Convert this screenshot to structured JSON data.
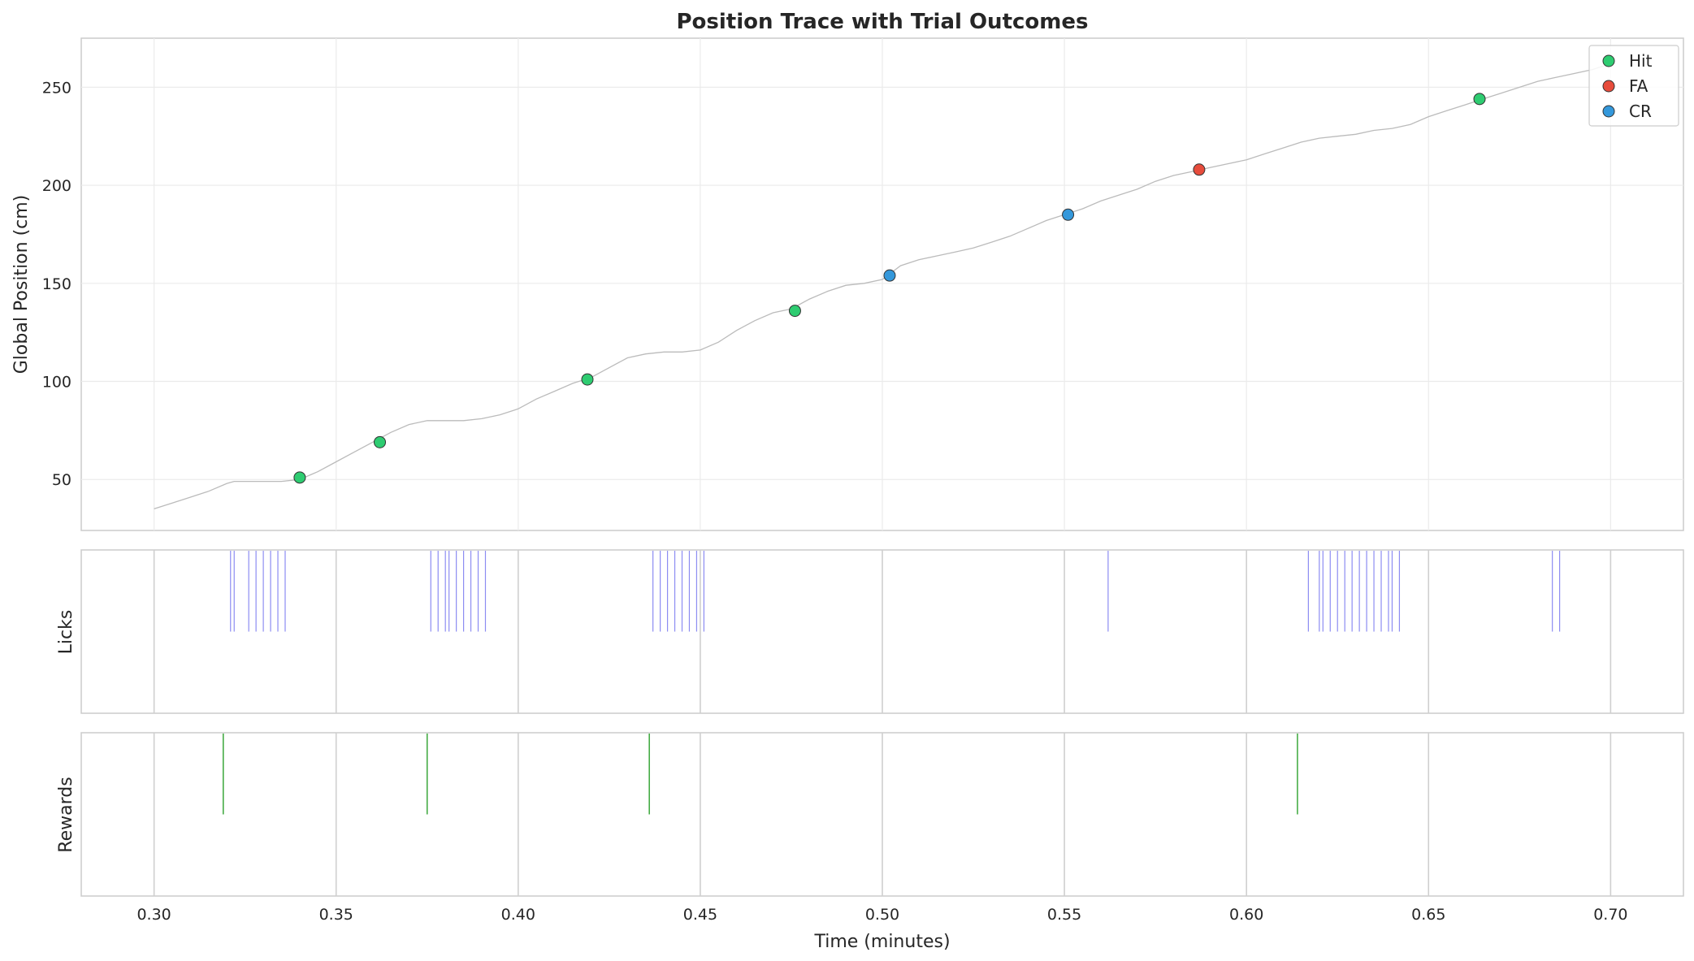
{
  "chart_data": {
    "type": "scatter",
    "title": "Position Trace with Trial Outcomes",
    "xlabel": "Time (minutes)",
    "xlim": [
      0.28,
      0.72
    ],
    "xticks": [
      0.3,
      0.35,
      0.4,
      0.45,
      0.5,
      0.55,
      0.6,
      0.65,
      0.7
    ],
    "xtick_labels": [
      "0.30",
      "0.35",
      "0.40",
      "0.45",
      "0.50",
      "0.55",
      "0.60",
      "0.65",
      "0.70"
    ],
    "grid": true,
    "panels": [
      {
        "id": "position",
        "ylabel": "Global Position (cm)",
        "ylim": [
          24,
          275
        ],
        "yticks": [
          50,
          100,
          150,
          200,
          250
        ],
        "ytick_labels": [
          "50",
          "100",
          "150",
          "200",
          "250"
        ],
        "trace": {
          "x": [
            0.3,
            0.305,
            0.31,
            0.315,
            0.32,
            0.322,
            0.33,
            0.335,
            0.34,
            0.345,
            0.35,
            0.355,
            0.36,
            0.365,
            0.37,
            0.375,
            0.378,
            0.385,
            0.39,
            0.395,
            0.4,
            0.405,
            0.41,
            0.415,
            0.42,
            0.425,
            0.43,
            0.435,
            0.44,
            0.445,
            0.45,
            0.455,
            0.46,
            0.465,
            0.47,
            0.475,
            0.48,
            0.485,
            0.49,
            0.495,
            0.5,
            0.505,
            0.51,
            0.515,
            0.52,
            0.525,
            0.53,
            0.535,
            0.54,
            0.545,
            0.55,
            0.555,
            0.56,
            0.565,
            0.57,
            0.575,
            0.58,
            0.585,
            0.59,
            0.595,
            0.6,
            0.605,
            0.61,
            0.615,
            0.62,
            0.625,
            0.63,
            0.635,
            0.64,
            0.645,
            0.65,
            0.655,
            0.66,
            0.665,
            0.67,
            0.675,
            0.68,
            0.685,
            0.69,
            0.695,
            0.7
          ],
          "y": [
            35,
            38,
            41,
            44,
            48,
            49,
            49,
            49,
            50,
            54,
            59,
            64,
            69,
            74,
            78,
            80,
            80,
            80,
            81,
            83,
            86,
            91,
            95,
            99,
            102,
            107,
            112,
            114,
            115,
            115,
            116,
            120,
            126,
            131,
            135,
            137,
            142,
            146,
            149,
            150,
            152,
            159,
            162,
            164,
            166,
            168,
            171,
            174,
            178,
            182,
            185,
            188,
            192,
            195,
            198,
            202,
            205,
            207,
            209,
            211,
            213,
            216,
            219,
            222,
            224,
            225,
            226,
            228,
            229,
            231,
            235,
            238,
            241,
            244,
            247,
            250,
            253,
            255,
            257,
            259,
            262
          ]
        },
        "series": [
          {
            "name": "Hit",
            "color": "#2ecc71",
            "x": [
              0.34,
              0.362,
              0.419,
              0.476,
              0.664
            ],
            "y": [
              51,
              69,
              101,
              136,
              244
            ]
          },
          {
            "name": "FA",
            "color": "#e74c3c",
            "x": [
              0.587
            ],
            "y": [
              208
            ]
          },
          {
            "name": "CR",
            "color": "#3498db",
            "x": [
              0.502,
              0.551
            ],
            "y": [
              154,
              185
            ]
          }
        ],
        "legend": "top-right"
      },
      {
        "id": "licks",
        "ylabel": "Licks",
        "color": "#6666ee",
        "events": [
          0.321,
          0.322,
          0.326,
          0.328,
          0.33,
          0.332,
          0.334,
          0.336,
          0.376,
          0.378,
          0.38,
          0.381,
          0.383,
          0.385,
          0.387,
          0.389,
          0.391,
          0.437,
          0.439,
          0.441,
          0.443,
          0.445,
          0.447,
          0.449,
          0.451,
          0.562,
          0.617,
          0.62,
          0.621,
          0.623,
          0.625,
          0.627,
          0.629,
          0.631,
          0.633,
          0.635,
          0.637,
          0.639,
          0.64,
          0.642,
          0.684,
          0.686
        ]
      },
      {
        "id": "rewards",
        "ylabel": "Rewards",
        "color": "#2ca02c",
        "events": [
          0.319,
          0.375,
          0.436,
          0.614
        ]
      }
    ]
  }
}
